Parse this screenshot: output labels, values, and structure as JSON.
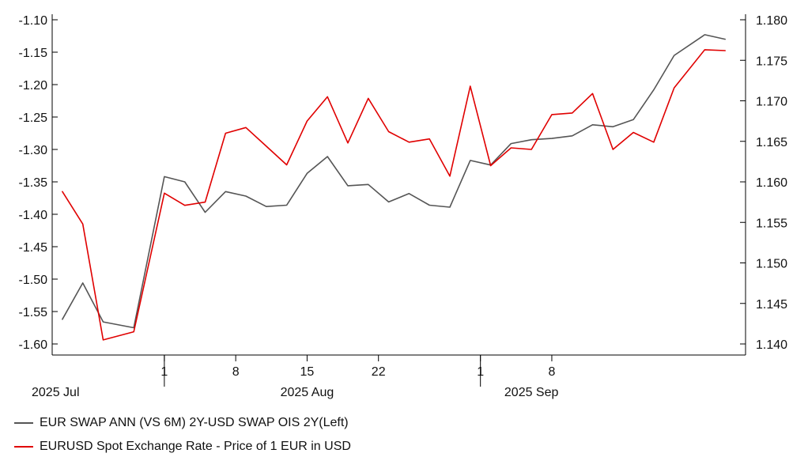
{
  "chart_data": {
    "type": "line",
    "x": [
      "2025-07-22",
      "2025-07-24",
      "2025-07-26",
      "2025-07-29",
      "2025-08-01",
      "2025-08-03",
      "2025-08-05",
      "2025-08-07",
      "2025-08-09",
      "2025-08-11",
      "2025-08-13",
      "2025-08-15",
      "2025-08-17",
      "2025-08-19",
      "2025-08-21",
      "2025-08-23",
      "2025-08-25",
      "2025-08-27",
      "2025-08-29",
      "2025-08-31",
      "2025-09-02",
      "2025-09-04",
      "2025-09-06",
      "2025-09-08",
      "2025-09-10",
      "2025-09-12",
      "2025-09-14",
      "2025-09-16",
      "2025-09-18",
      "2025-09-20",
      "2025-09-23",
      "2025-09-25"
    ],
    "series": [
      {
        "name": "EUR SWAP ANN (VS 6M) 2Y-USD SWAP OIS 2Y(Left)",
        "axis": "left",
        "color": "#555555",
        "values": [
          -1.562,
          -1.506,
          -1.566,
          -1.575,
          -1.342,
          -1.35,
          -1.397,
          -1.365,
          -1.372,
          -1.388,
          -1.386,
          -1.337,
          -1.311,
          -1.356,
          -1.354,
          -1.381,
          -1.368,
          -1.386,
          -1.389,
          -1.317,
          -1.324,
          -1.291,
          -1.285,
          -1.283,
          -1.279,
          -1.262,
          -1.265,
          -1.254,
          -1.208,
          -1.155,
          -1.123,
          -1.13
        ]
      },
      {
        "name": "EURUSD Spot Exchange Rate - Price of 1 EUR in USD",
        "axis": "right",
        "color": "#e00000",
        "values": [
          1.1588,
          1.1548,
          1.1405,
          1.1415,
          1.1586,
          1.1571,
          1.1575,
          1.166,
          1.1667,
          1.1644,
          1.1621,
          1.1675,
          1.1705,
          1.1648,
          1.1703,
          1.1662,
          1.1649,
          1.1653,
          1.1607,
          1.1718,
          1.162,
          1.1642,
          1.164,
          1.1683,
          1.1685,
          1.1709,
          1.164,
          1.1661,
          1.1649,
          1.1716,
          1.1763,
          1.1762
        ]
      }
    ],
    "left_axis": {
      "ylim": [
        -1.6,
        -1.1
      ],
      "ticks": [
        "-1.10",
        "-1.15",
        "-1.20",
        "-1.25",
        "-1.30",
        "-1.35",
        "-1.40",
        "-1.45",
        "-1.50",
        "-1.55",
        "-1.60"
      ]
    },
    "right_axis": {
      "ylim": [
        1.14,
        1.18
      ],
      "ticks": [
        "1.180",
        "1.175",
        "1.170",
        "1.165",
        "1.160",
        "1.155",
        "1.150",
        "1.145",
        "1.140"
      ]
    },
    "x_axis": {
      "xlim": [
        "2025-07-21",
        "2025-09-27"
      ],
      "day_ticks": [
        {
          "date": "2025-08-01",
          "label": "1"
        },
        {
          "date": "2025-08-08",
          "label": "8"
        },
        {
          "date": "2025-08-15",
          "label": "15"
        },
        {
          "date": "2025-08-22",
          "label": "22"
        },
        {
          "date": "2025-09-01",
          "label": "1"
        },
        {
          "date": "2025-09-08",
          "label": "8"
        }
      ],
      "month_labels": [
        {
          "date": "2025-07-24",
          "label": "2025 Jul"
        },
        {
          "date": "2025-08-15",
          "label": "2025 Aug"
        },
        {
          "date": "2025-09-06",
          "label": "2025 Sep"
        }
      ]
    },
    "legend_position": "bottom-left",
    "grid": false
  },
  "legend": {
    "item1_label": "EUR SWAP ANN (VS 6M) 2Y-USD SWAP OIS 2Y(Left)",
    "item2_label": "EURUSD Spot Exchange Rate - Price of 1 EUR in USD",
    "item1_color": "#555555",
    "item2_color": "#e00000"
  }
}
